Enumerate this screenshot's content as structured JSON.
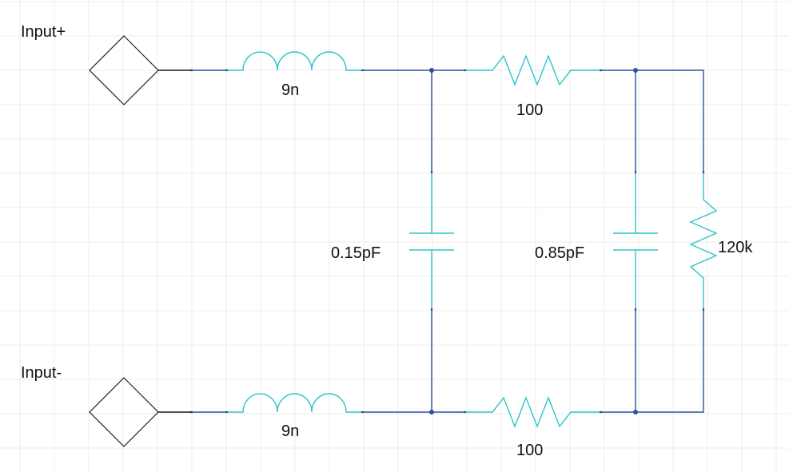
{
  "colors": {
    "background": "#ffffff",
    "grid": "#ececec",
    "wire": "#2e4f9e",
    "component": "#2fc4c9",
    "port": "#222222",
    "text": "#111111"
  },
  "ports": {
    "input_plus": "Input+",
    "input_minus": "Input-"
  },
  "components": {
    "inductor_top": "9n",
    "inductor_bottom": "9n",
    "resistor_top": "100",
    "resistor_bottom": "100",
    "capacitor_left": "0.15pF",
    "capacitor_right": "0.85pF",
    "resistor_load": "120k"
  }
}
